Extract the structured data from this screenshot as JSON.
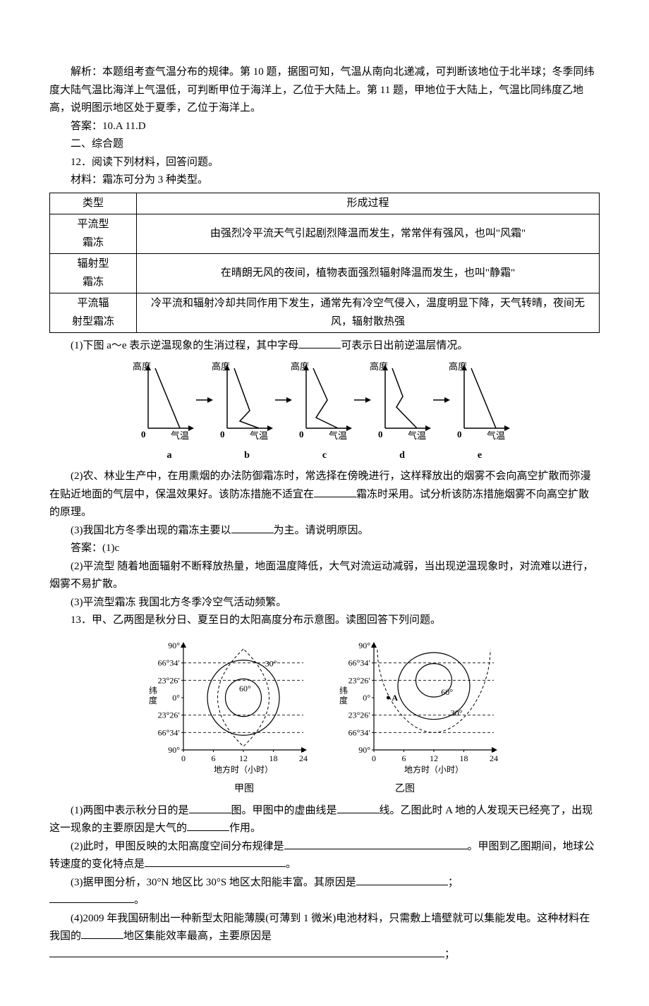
{
  "analysis": "解析：本题组考查气温分布的规律。第 10 题，据图可知，气温从南向北递减，可判断该地位于北半球；冬季同纬度大陆气温比海洋上气温低，可判断甲位于海洋上，乙位于大陆上。第 11 题，甲地位于大陆上，气温比同纬度乙地高，说明图示地区处于夏季，乙位于海洋上。",
  "answer_1011": "答案：10.A  11.D",
  "section2_title": "二、综合题",
  "q12_intro": "12．阅读下列材料，回答问题。",
  "q12_material": "材料：霜冻可分为 3 种类型。",
  "table": {
    "head": [
      "类型",
      "形成过程"
    ],
    "rows": [
      [
        "平流型\n霜冻",
        "由强烈冷平流天气引起剧烈降温而发生，常常伴有强风，也叫\"风霜\""
      ],
      [
        "辐射型\n霜冻",
        "在晴朗无风的夜间，植物表面强烈辐射降温而发生，也叫\"静霜\""
      ],
      [
        "平流辐\n射型霜冻",
        "冷平流和辐射冷却共同作用下发生，通常先有冷空气侵入，温度明显下降，天气转晴，夜间无风，辐射散热强"
      ]
    ]
  },
  "q12_1a": "(1)下图 a～e 表示逆温现象的生消过程，其中字母",
  "q12_1b": "可表示日出前逆温层情况。",
  "diagram": {
    "ylabel": "高度",
    "xlabel": "气温",
    "labels": [
      "a",
      "b",
      "c",
      "d",
      "e"
    ],
    "line_color": "#000000",
    "axis_color": "#000000",
    "fontsize": 13
  },
  "q12_2a": "(2)农、林业生产中，在用熏烟的办法防御霜冻时，常选择在傍晚进行，这样释放出的烟雾不会向高空扩散而弥漫在贴近地面的气层中，保温效果好。该防冻措施不适宜在",
  "q12_2b": "霜冻时采用。试分析该防冻措施烟雾不向高空扩散的原理。",
  "q12_3a": "(3)我国北方冬季出现的霜冻主要以",
  "q12_3b": "为主。请说明原因。",
  "q12_ans_label": "答案：(1)c",
  "q12_ans2": "(2)平流型  随着地面辐射不断释放热量，地面温度降低，大气对流运动减弱，当出现逆温现象时，对流难以进行，烟雾不易扩散。",
  "q12_ans3": "(3)平流型霜冻  我国北方冬季冷空气活动频繁。",
  "q13_intro": "13．甲、乙两图是秋分日、夏至日的太阳高度分布示意图。读图回答下列问题。",
  "sun": {
    "ylabel": "纬\n度",
    "yticks_top": [
      "90°",
      "66°34′",
      "23°26′",
      "0°",
      "23°26′",
      "66°34′",
      "90°"
    ],
    "xticks": [
      "0",
      "6",
      "12",
      "18",
      "24"
    ],
    "xlabel": "地方时（小时）",
    "caption_a": "甲图",
    "caption_b": "乙图",
    "contour_labels_a": [
      "30°",
      "60°"
    ],
    "contour_labels_b": [
      "60°",
      "30°"
    ],
    "a_label": "A",
    "line_color": "#000000",
    "dash": "4,3",
    "fontsize": 12
  },
  "q13_1a": "(1)两图中表示秋分日的是",
  "q13_1b": "图。甲图中的虚曲线是",
  "q13_1c": "线。乙图此时 A 地的人发现天已经亮了，出现这一现象的主要原因是大气的",
  "q13_1d": "作用。",
  "q13_2a": "(2)此时，甲图反映的太阳高度空间分布规律是",
  "q13_2b": "。甲图到乙图期间，地球公转速度的变化特点是",
  "q13_2c": "。",
  "q13_3a": "(3)据甲图分析，30°N 地区比 30°S 地区太阳能丰富。其原因是",
  "q13_3b": "；",
  "q13_3c": "。",
  "q13_4a": "(4)2009 年我国研制出一种新型太阳能薄膜(可薄到 1 微米)电池材料，只需敷上墙壁就可以集能发电。这种材料在我国的",
  "q13_4b": "地区集能效率最高，主要原因是",
  "q13_4c": "；"
}
